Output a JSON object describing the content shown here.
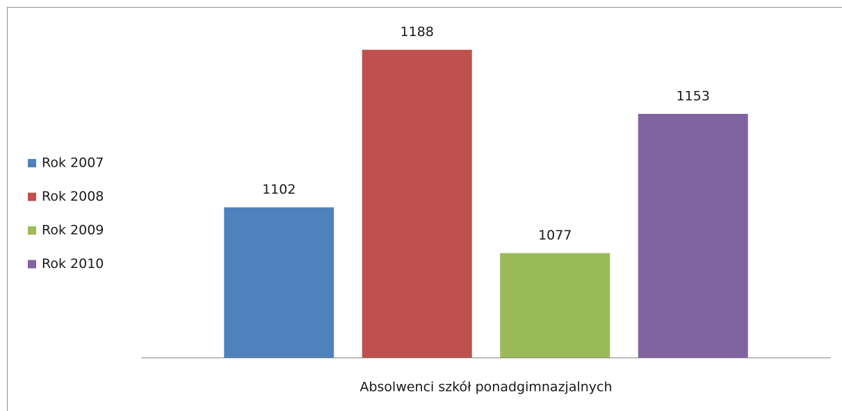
{
  "chart_data": {
    "type": "bar",
    "categories": [
      "Absolwenci szkół ponadgimnazjalnych"
    ],
    "series": [
      {
        "name": "Rok 2007",
        "color": "#4f81bd",
        "values": [
          1102
        ]
      },
      {
        "name": "Rok 2008",
        "color": "#c0504d",
        "values": [
          1188
        ]
      },
      {
        "name": "Rok 2009",
        "color": "#9bbb59",
        "values": [
          1077
        ]
      },
      {
        "name": "Rok 2010",
        "color": "#8064a2",
        "values": [
          1153
        ]
      }
    ],
    "ylim": [
      1020,
      1200
    ],
    "legend": "left"
  }
}
